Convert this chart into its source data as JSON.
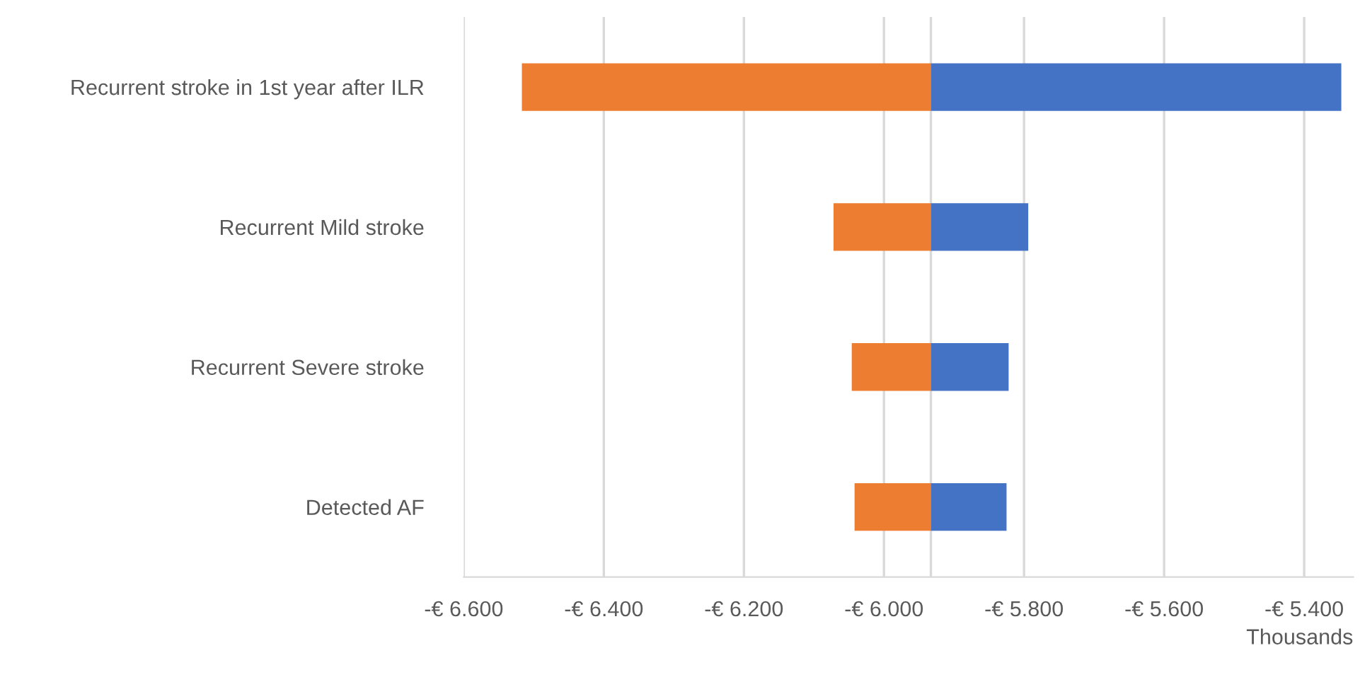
{
  "chart_data": {
    "type": "bar",
    "orientation": "horizontal",
    "categories": [
      "Recurrent stroke in 1st year after ILR",
      "Recurrent Mild stroke",
      "Recurrent Severe stroke",
      "Detected AF"
    ],
    "series": [
      {
        "color": "#ed7d31",
        "base": [
          -6517,
          -6072,
          -6046,
          -6042
        ],
        "values": [
          584,
          139,
          113,
          109
        ]
      },
      {
        "color": "#4472c4",
        "base": [
          -5933,
          -5933,
          -5933,
          -5933
        ],
        "values": [
          586,
          139,
          111,
          108
        ]
      }
    ],
    "xlim": [
      -6600,
      -5330
    ],
    "xticks": [
      {
        "value": -6600,
        "label": "-€ 6.600"
      },
      {
        "value": -6400,
        "label": "-€ 6.400"
      },
      {
        "value": -6200,
        "label": "-€ 6.200"
      },
      {
        "value": -6000,
        "label": "-€ 6.000"
      },
      {
        "value": -5800,
        "label": "-€ 5.800"
      },
      {
        "value": -5600,
        "label": "-€ 5.600"
      },
      {
        "value": -5400,
        "label": "-€ 5.400"
      }
    ],
    "xlabel": "Thousands",
    "ref_lines": [
      {
        "axis": "x",
        "value": -5933,
        "color": "#d9d9d9"
      }
    ],
    "grid": "x",
    "legend": false
  }
}
